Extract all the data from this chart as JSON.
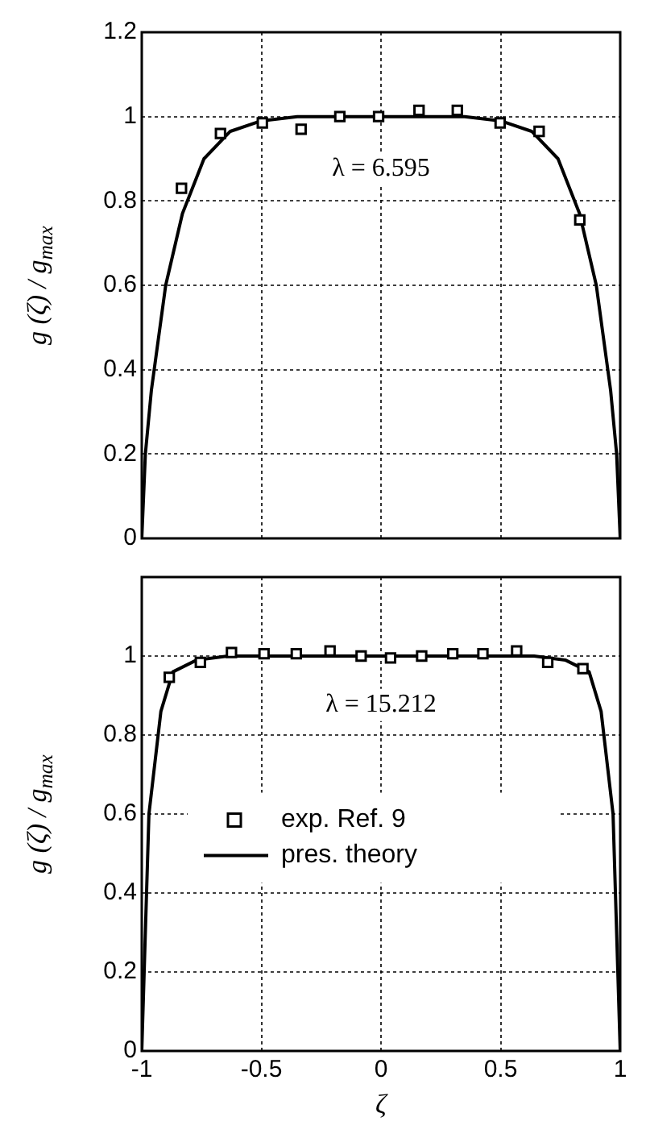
{
  "chart_data": [
    {
      "type": "scatter",
      "ylabel": "g (ζ) / g$_{max}$",
      "xlim": [
        -1,
        1
      ],
      "xticks": [
        -1,
        -0.5,
        0,
        0.5,
        1
      ],
      "ylim": [
        0,
        1.2
      ],
      "yticks": [
        0,
        0.2,
        0.4,
        0.6,
        0.8,
        1,
        1.2
      ],
      "grid": true,
      "tick_labels": "y",
      "annotations": [
        "λ = 6.595"
      ],
      "series": [
        {
          "color": "#000000",
          "marker": "square",
          "x": [
            -0.834,
            -0.671,
            -0.496,
            -0.334,
            -0.172,
            -0.01,
            0.159,
            0.319,
            0.498,
            0.661,
            0.831
          ],
          "values": [
            0.83,
            0.96,
            0.985,
            0.97,
            1.0,
            1.0,
            1.015,
            1.015,
            0.985,
            0.965,
            0.755
          ]
        },
        {
          "type": "line",
          "color": "#000000",
          "marker": "none",
          "line_style": "solid",
          "x": [
            -1,
            -0.985,
            -0.96,
            -0.9,
            -0.83,
            -0.74,
            -0.63,
            -0.5,
            -0.35,
            0,
            0.35,
            0.5,
            0.63,
            0.74,
            0.83,
            0.9,
            0.96,
            0.985,
            1
          ],
          "values": [
            0,
            0.2,
            0.35,
            0.6,
            0.77,
            0.9,
            0.965,
            0.99,
            1.0,
            1.0,
            1.0,
            0.99,
            0.965,
            0.9,
            0.77,
            0.6,
            0.35,
            0.2,
            0
          ]
        }
      ]
    },
    {
      "type": "scatter",
      "xlabel": "ζ",
      "ylabel": "g (ζ) / g$_{max}$",
      "xlim": [
        -1,
        1
      ],
      "xticks": [
        -1,
        -0.5,
        0,
        0.5,
        1
      ],
      "ylim": [
        0,
        1.2
      ],
      "yticks": [
        0,
        0.2,
        0.4,
        0.6,
        0.8,
        1
      ],
      "grid": true,
      "legend": "center",
      "annotations": [
        "λ = 15.212"
      ],
      "series": [
        {
          "name": "exp. Ref. 9",
          "color": "#000000",
          "marker": "square",
          "x": [
            -0.885,
            -0.755,
            -0.625,
            -0.489,
            -0.354,
            -0.213,
            -0.083,
            0.04,
            0.17,
            0.3,
            0.426,
            0.567,
            0.697,
            0.844
          ],
          "values": [
            0.946,
            0.984,
            1.009,
            1.006,
            1.006,
            1.013,
            1.0,
            0.995,
            1.0,
            1.006,
            1.006,
            1.013,
            0.984,
            0.968
          ]
        },
        {
          "type": "line",
          "name": "pres. theory",
          "color": "#000000",
          "marker": "none",
          "line_style": "solid",
          "x": [
            -1,
            -0.99,
            -0.97,
            -0.92,
            -0.87,
            -0.77,
            -0.64,
            0,
            0.64,
            0.77,
            0.87,
            0.92,
            0.97,
            0.99,
            1
          ],
          "values": [
            0,
            0.2,
            0.6,
            0.86,
            0.96,
            0.99,
            1.0,
            1.0,
            1.0,
            0.99,
            0.96,
            0.86,
            0.6,
            0.2,
            0
          ]
        }
      ]
    }
  ]
}
